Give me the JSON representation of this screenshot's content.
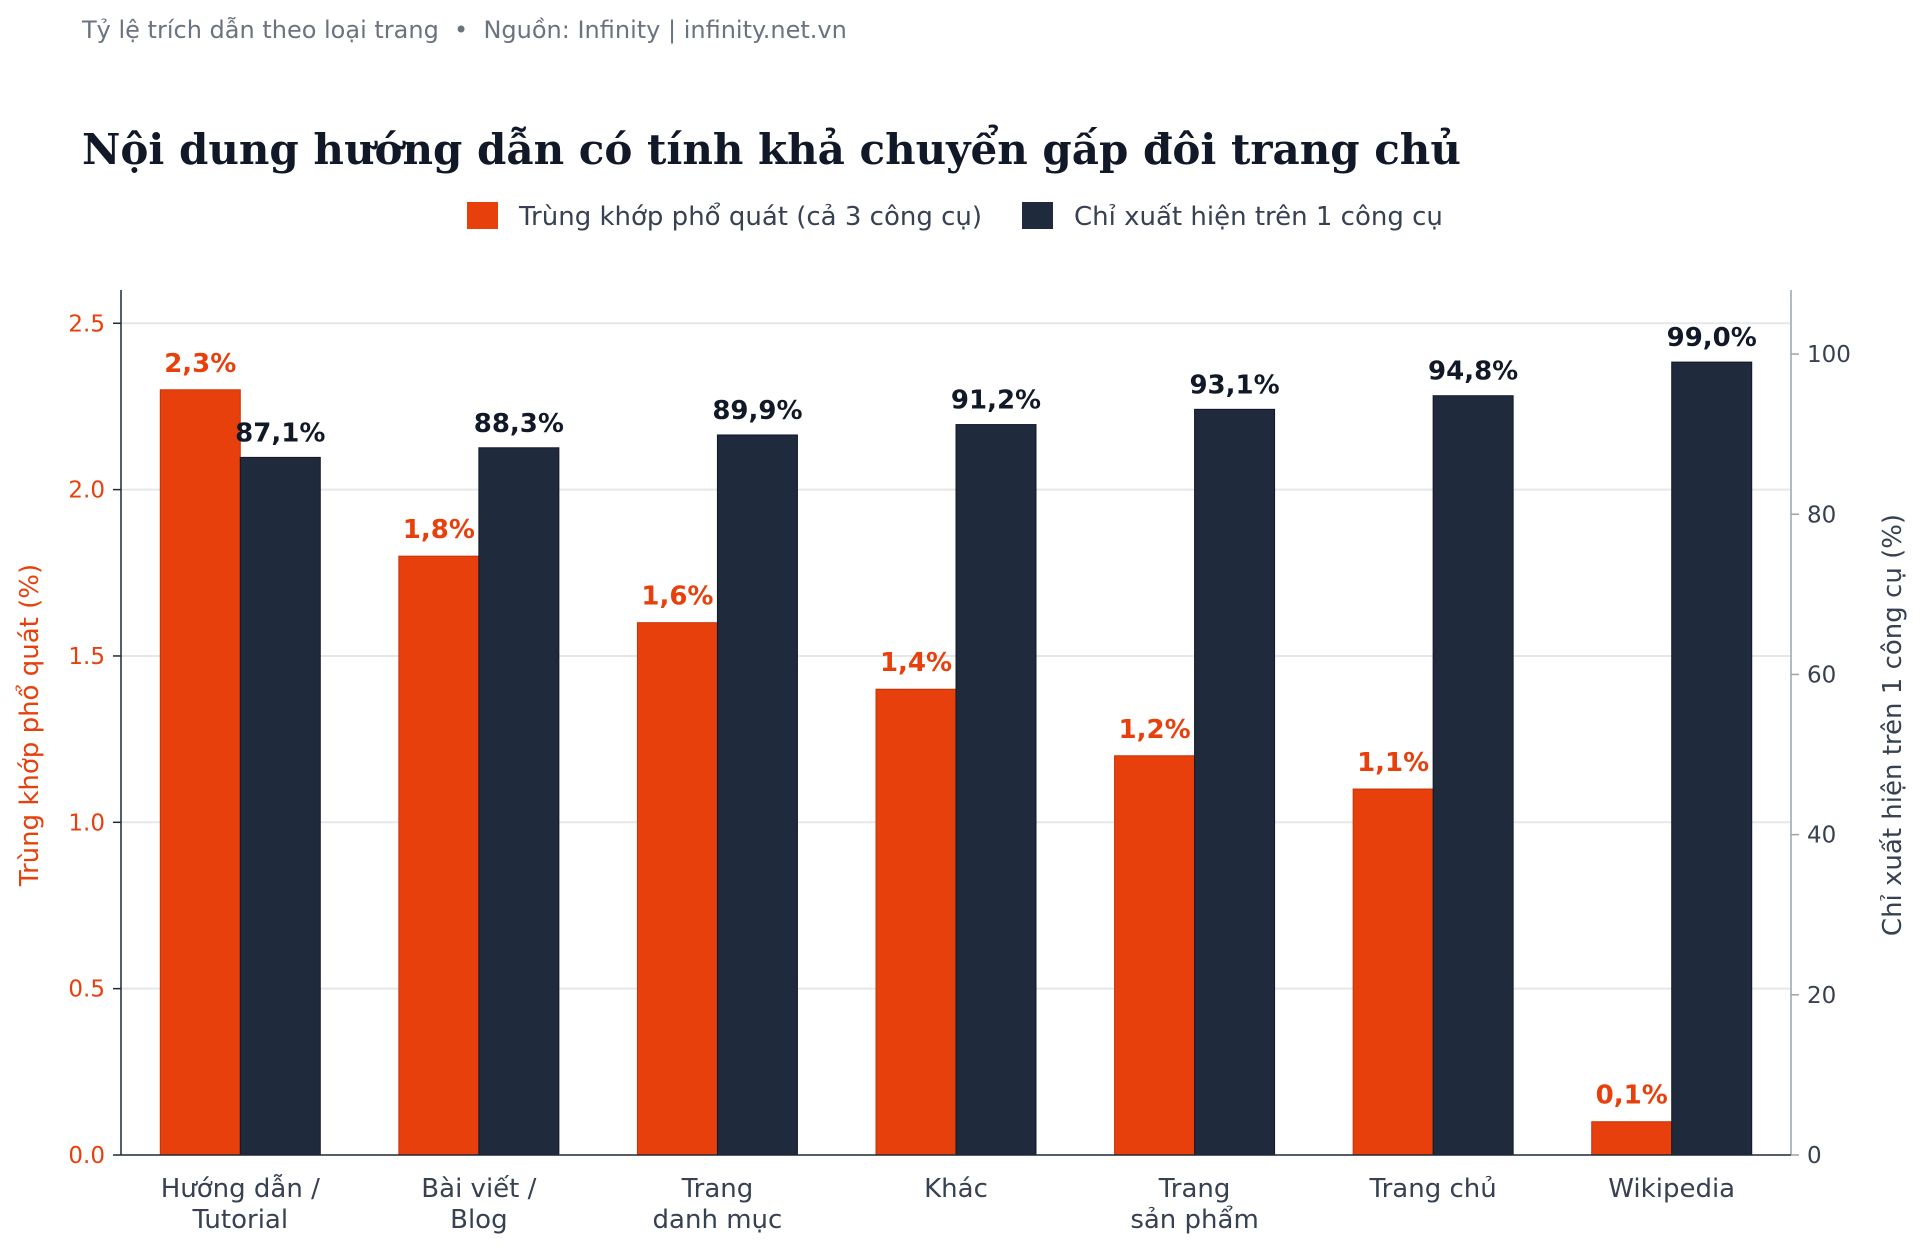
{
  "header": {
    "subtitle": "Tỷ lệ trích dẫn theo loại trang  •  Nguồn: Infinity | infinity.net.vn"
  },
  "chart_data": {
    "type": "bar",
    "title": "Nội dung hướng dẫn có tính khả chuyển gấp đôi trang chủ",
    "categories": [
      [
        "Hướng dẫn /",
        "Tutorial"
      ],
      [
        "Bài viết /",
        "Blog"
      ],
      [
        "Trang",
        "danh mục"
      ],
      [
        "Khác"
      ],
      [
        "Trang",
        "sản phẩm"
      ],
      [
        "Trang chủ"
      ],
      [
        "Wikipedia"
      ]
    ],
    "series": [
      {
        "name": "Trùng khớp phổ quát (cả 3 công cụ)",
        "axis": "left",
        "color": "#e8400c",
        "values": [
          2.3,
          1.8,
          1.6,
          1.4,
          1.2,
          1.1,
          0.1
        ],
        "labels": [
          "2,3%",
          "1,8%",
          "1,6%",
          "1,4%",
          "1,2%",
          "1,1%",
          "0,1%"
        ]
      },
      {
        "name": "Chỉ xuất hiện trên 1 công cụ",
        "axis": "right",
        "color": "#1f2a3c",
        "values": [
          87.1,
          88.3,
          89.9,
          91.2,
          93.1,
          94.8,
          99.0
        ],
        "labels": [
          "87,1%",
          "88,3%",
          "89,9%",
          "91,2%",
          "93,1%",
          "94,8%",
          "99,0%"
        ]
      }
    ],
    "ylabel_left": "Trùng khớp phổ quát (%)",
    "ylabel_right": "Chỉ xuất hiện trên 1 công cụ (%)",
    "ylim_left": [
      0,
      2.6
    ],
    "ylim_right": [
      0,
      108
    ],
    "yticks_left": [
      "0.0",
      "0.5",
      "1.0",
      "1.5",
      "2.0",
      "2.5"
    ],
    "yticks_right": [
      "0",
      "20",
      "40",
      "60",
      "80",
      "100"
    ],
    "grid": true,
    "legend_position": "top-center"
  }
}
